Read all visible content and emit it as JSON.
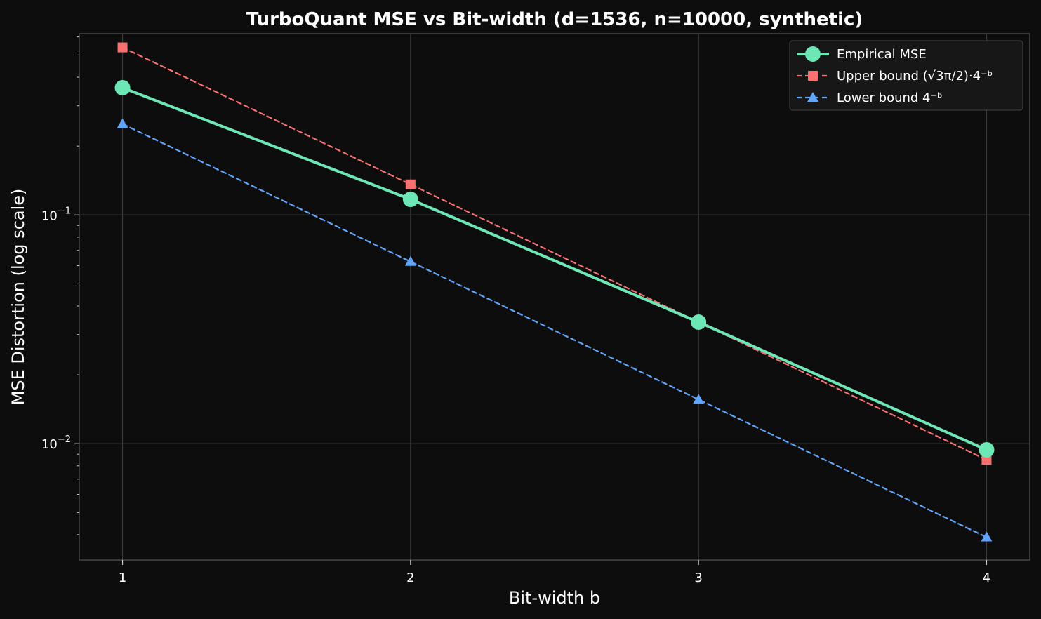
{
  "chart_data": {
    "type": "line",
    "title": "TurboQuant MSE vs Bit-width (d=1536, n=10000, synthetic)",
    "xlabel": "Bit-width b",
    "ylabel": "MSE Distortion (log scale)",
    "yscale": "log",
    "xlim": [
      0.85,
      4.15
    ],
    "ylim": [
      0.0031,
      0.62
    ],
    "x": [
      1,
      2,
      3,
      4
    ],
    "x_ticks": [
      "1",
      "2",
      "3",
      "4"
    ],
    "y_ticks": [
      {
        "value": 0.1,
        "base": "10",
        "exp": "−1"
      },
      {
        "value": 0.01,
        "base": "10",
        "exp": "−2"
      }
    ],
    "grid": true,
    "legend_position": "top-right",
    "background": "#0d0d0d",
    "series": [
      {
        "name": "Empirical MSE",
        "values": [
          0.36,
          0.117,
          0.034,
          0.0094
        ],
        "color": "#6ee7b7",
        "marker": "circle",
        "line_style": "solid"
      },
      {
        "name": "Upper bound (√3π/2)·4⁻ᵇ",
        "values": [
          0.54,
          0.136,
          0.034,
          0.0085
        ],
        "color": "#f87171",
        "marker": "square",
        "line_style": "dashed"
      },
      {
        "name": "Lower bound 4⁻ᵇ",
        "values": [
          0.25,
          0.0625,
          0.0156,
          0.0039
        ],
        "color": "#60a5fa",
        "marker": "triangle",
        "line_style": "dashed"
      }
    ]
  }
}
